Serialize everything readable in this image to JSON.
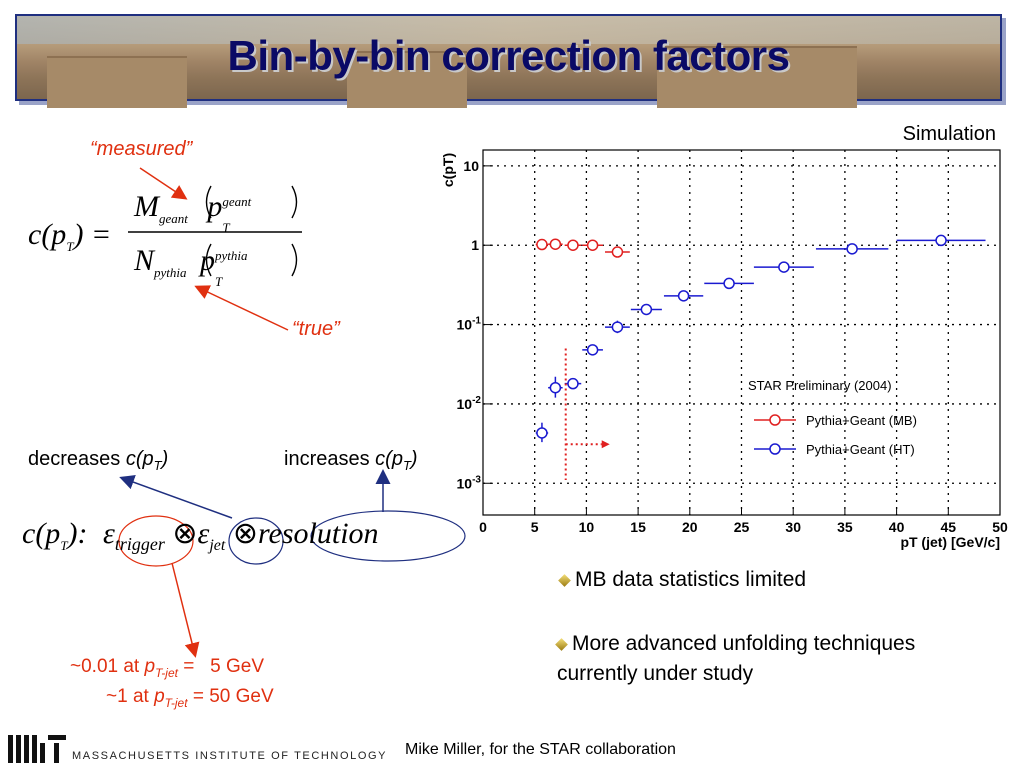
{
  "slide": {
    "title": "Bin-by-bin correction factors",
    "measured_label": "“measured”",
    "true_label": "“true”",
    "formula": {
      "lhs": "c(p",
      "lhs_sub": "T",
      "lhs_end": ") =",
      "num_M": "M",
      "num_sub": "geant",
      "num_p": "p",
      "num_p_sub": "T",
      "num_p_sup": "geant",
      "den_N": "N",
      "den_sub": "pythia",
      "den_p": "p",
      "den_p_sub": "T",
      "den_p_sup": "pythia"
    },
    "decreases_prefix": "decreases ",
    "decreases_c": "c(p",
    "decreases_sub": "T",
    "decreases_end": ")",
    "increases_prefix": "increases ",
    "increases_c": "c(p",
    "increases_sub": "T",
    "increases_end": ")",
    "factor_formula": {
      "lhs": "c(p",
      "lhs_sub": "T",
      "lhs_end": "):",
      "eps1": "ε",
      "eps1_sub": "trigger",
      "otimes1": "⊗",
      "eps2": "ε",
      "eps2_sub": "jet",
      "otimes2": "⊗",
      "resolution": "resolution"
    },
    "trigger_note_1_a": "~0.01 at ",
    "trigger_note_1_p": "p",
    "trigger_note_1_sub": "T-jet",
    "trigger_note_1_b": " =   5 GeV",
    "trigger_note_2_a": "~1 at ",
    "trigger_note_2_p": "p",
    "trigger_note_2_sub": "T-jet",
    "trigger_note_2_b": " = 50 GeV",
    "bullets": [
      "MB data statistics limited",
      "More advanced unfolding techniques currently under study"
    ],
    "footer": "Mike Miller, for the STAR collaboration",
    "mit_text": "MASSACHUSETTS INSTITUTE OF TECHNOLOGY"
  },
  "chart_data": {
    "type": "scatter",
    "annotation": "Simulation",
    "ylabel": "c(p_T)",
    "xlabel": "p_T (jet) [GeV/c]",
    "xlim": [
      0,
      50
    ],
    "ylim_log10": [
      -3.4,
      1.2
    ],
    "log_y": true,
    "grid": true,
    "x_ticks": [
      0,
      5,
      10,
      15,
      20,
      25,
      30,
      35,
      40,
      45,
      50
    ],
    "y_ticks": [
      {
        "exp": -3,
        "label": "10",
        "sup": "-3"
      },
      {
        "exp": -2,
        "label": "10",
        "sup": "-2"
      },
      {
        "exp": -1,
        "label": "10",
        "sup": "-1"
      },
      {
        "exp": 0,
        "label": "1",
        "sup": ""
      },
      {
        "exp": 1,
        "label": "10",
        "sup": ""
      }
    ],
    "legend_title": "STAR Preliminary (2004)",
    "legend_position": "right",
    "series": [
      {
        "name": "Pythia+Geant (MB)",
        "color": "#e02020",
        "points": [
          {
            "x": 5.7,
            "y": 1.02,
            "xerr": 0.6
          },
          {
            "x": 7.0,
            "y": 1.03,
            "xerr": 0.7
          },
          {
            "x": 8.7,
            "y": 1.0,
            "xerr": 0.8
          },
          {
            "x": 10.6,
            "y": 1.0,
            "xerr": 1.0
          },
          {
            "x": 13.0,
            "y": 0.82,
            "xerr": 1.2
          }
        ]
      },
      {
        "name": "Pythia+Geant (HT)",
        "color": "#1a1ad0",
        "points": [
          {
            "x": 5.7,
            "y": 0.0043,
            "xerr": 0.6,
            "yerr_lo": 0.0033,
            "yerr_hi": 0.0058
          },
          {
            "x": 7.0,
            "y": 0.016,
            "xerr": 0.7,
            "yerr_lo": 0.012,
            "yerr_hi": 0.022
          },
          {
            "x": 8.7,
            "y": 0.018,
            "xerr": 0.8
          },
          {
            "x": 10.6,
            "y": 0.048,
            "xerr": 1.0
          },
          {
            "x": 13.0,
            "y": 0.093,
            "xerr": 1.2,
            "yerr_lo": 0.078,
            "yerr_hi": 0.112
          },
          {
            "x": 15.8,
            "y": 0.155,
            "xerr": 1.5
          },
          {
            "x": 19.4,
            "y": 0.23,
            "xerr": 1.9
          },
          {
            "x": 23.8,
            "y": 0.33,
            "xerr": 2.4
          },
          {
            "x": 29.1,
            "y": 0.53,
            "xerr": 2.9
          },
          {
            "x": 35.7,
            "y": 0.9,
            "xerr": 3.5
          },
          {
            "x": 44.3,
            "y": 1.15,
            "xerr": 4.3
          }
        ]
      }
    ],
    "trigger_threshold_x": 8.0
  }
}
